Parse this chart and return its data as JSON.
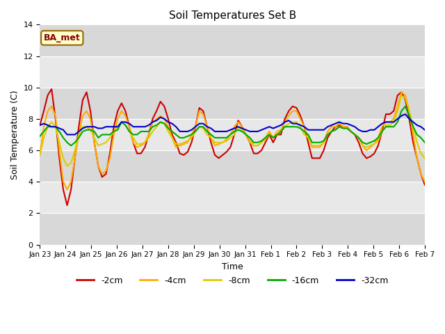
{
  "title": "Soil Temperatures Set B",
  "xlabel": "Time",
  "ylabel": "Soil Temperature (C)",
  "ylim": [
    0,
    14
  ],
  "annotation": "BA_met",
  "colors": {
    "-2cm": "#cc0000",
    "-4cm": "#ffaa00",
    "-8cm": "#ddcc00",
    "-16cm": "#00aa00",
    "-32cm": "#0000cc"
  },
  "fig_bg_color": "#ffffff",
  "plot_bg_color": "#e8e8e8",
  "xtick_labels": [
    "Jan 23",
    "Jan 24",
    "Jan 25",
    "Jan 26",
    "Jan 27",
    "Jan 28",
    "Jan 29",
    "Jan 30",
    "Jan 31",
    "Feb 1",
    "Feb 2",
    "Feb 3",
    "Feb 4",
    "Feb 5",
    "Feb 6",
    "Feb 7"
  ],
  "band_colors": [
    "#e0e0e0",
    "#d0d0d0"
  ],
  "line_width": 1.5,
  "legend_entries": [
    "-2cm",
    "-4cm",
    "-8cm",
    "-16cm",
    "-32cm"
  ],
  "series_x": [
    0,
    1,
    2,
    3,
    4,
    5,
    6,
    7,
    8,
    9,
    10,
    11,
    12,
    13,
    14,
    15,
    16,
    17,
    18,
    19,
    20,
    21,
    22,
    23,
    24,
    25,
    26,
    27,
    28,
    29,
    30,
    31,
    32,
    33,
    34,
    35,
    36,
    37,
    38,
    39,
    40,
    41,
    42,
    43,
    44,
    45,
    46,
    47,
    48,
    49,
    50,
    51,
    52,
    53,
    54,
    55,
    56,
    57,
    58,
    59,
    60,
    61,
    62,
    63,
    64,
    65,
    66,
    67,
    68,
    69,
    70,
    71,
    72,
    73,
    74,
    75,
    76,
    77,
    78,
    79,
    80,
    81,
    82,
    83,
    84,
    85,
    86,
    87,
    88,
    89,
    90,
    91,
    92,
    93,
    94,
    95,
    96,
    97,
    98,
    99
  ],
  "series": {
    "-2cm": [
      7.6,
      8.5,
      9.5,
      9.9,
      8.0,
      5.5,
      3.5,
      2.5,
      3.5,
      5.5,
      7.5,
      9.2,
      9.7,
      8.5,
      6.5,
      5.0,
      4.3,
      4.5,
      5.8,
      7.5,
      8.5,
      9.0,
      8.5,
      7.5,
      6.5,
      5.8,
      5.8,
      6.2,
      7.0,
      8.0,
      8.5,
      9.1,
      8.8,
      8.0,
      7.0,
      6.5,
      5.8,
      5.7,
      5.9,
      6.5,
      7.5,
      8.7,
      8.5,
      7.5,
      6.5,
      5.7,
      5.5,
      5.7,
      5.9,
      6.2,
      7.0,
      7.9,
      7.5,
      7.0,
      6.5,
      5.8,
      5.8,
      6.0,
      6.5,
      7.0,
      6.5,
      7.0,
      7.0,
      8.0,
      8.5,
      8.8,
      8.7,
      8.2,
      7.5,
      6.5,
      5.5,
      5.5,
      5.5,
      6.0,
      6.8,
      7.2,
      7.5,
      7.6,
      7.5,
      7.5,
      7.2,
      7.0,
      6.5,
      5.8,
      5.5,
      5.6,
      5.8,
      6.3,
      7.2,
      8.3,
      8.3,
      8.5,
      9.5,
      9.7,
      9.2,
      8.0,
      6.5,
      5.5,
      4.5,
      3.8
    ],
    "-4cm": [
      5.7,
      7.5,
      8.5,
      8.8,
      8.2,
      6.0,
      4.0,
      3.5,
      4.0,
      5.5,
      7.0,
      8.2,
      8.5,
      8.0,
      6.5,
      5.0,
      4.5,
      4.7,
      5.5,
      7.0,
      8.0,
      8.5,
      8.2,
      7.5,
      6.5,
      6.2,
      6.3,
      6.5,
      7.0,
      7.8,
      8.0,
      8.2,
      8.0,
      7.5,
      6.8,
      6.2,
      6.3,
      6.4,
      6.5,
      7.0,
      7.5,
      8.5,
      8.3,
      7.5,
      6.8,
      6.3,
      6.4,
      6.5,
      6.7,
      7.0,
      7.5,
      7.8,
      7.5,
      7.0,
      6.5,
      6.3,
      6.3,
      6.5,
      6.8,
      7.2,
      6.8,
      7.2,
      7.3,
      7.8,
      8.2,
      8.5,
      8.5,
      8.0,
      7.5,
      6.8,
      6.2,
      6.2,
      6.2,
      6.5,
      7.2,
      7.5,
      7.5,
      7.7,
      7.5,
      7.5,
      7.2,
      7.0,
      6.8,
      6.3,
      6.0,
      6.2,
      6.4,
      6.8,
      7.5,
      7.8,
      7.8,
      8.0,
      8.8,
      9.7,
      9.5,
      8.5,
      7.0,
      5.5,
      4.5,
      4.0
    ],
    "-8cm": [
      5.7,
      6.8,
      7.5,
      7.8,
      7.5,
      6.5,
      5.5,
      5.0,
      5.2,
      6.0,
      7.0,
      7.5,
      7.5,
      7.3,
      6.8,
      6.3,
      6.4,
      6.5,
      6.8,
      7.2,
      7.5,
      7.8,
      7.6,
      7.2,
      6.8,
      6.4,
      6.4,
      6.5,
      6.8,
      7.2,
      7.5,
      7.8,
      7.7,
      7.2,
      6.8,
      6.4,
      6.4,
      6.5,
      6.6,
      6.8,
      7.2,
      7.5,
      7.4,
      7.0,
      6.8,
      6.5,
      6.5,
      6.5,
      6.6,
      6.8,
      7.0,
      7.5,
      7.3,
      7.0,
      6.8,
      6.3,
      6.3,
      6.5,
      6.7,
      7.0,
      6.8,
      7.0,
      7.2,
      7.5,
      7.7,
      7.8,
      7.8,
      7.5,
      7.0,
      6.8,
      6.3,
      6.3,
      6.3,
      6.5,
      7.0,
      7.2,
      7.3,
      7.5,
      7.4,
      7.4,
      7.2,
      7.0,
      6.8,
      6.3,
      6.2,
      6.3,
      6.4,
      6.6,
      7.2,
      7.6,
      7.6,
      7.8,
      8.5,
      9.5,
      9.3,
      8.5,
      7.5,
      6.5,
      5.8,
      5.5
    ],
    "-16cm": [
      6.9,
      7.2,
      7.5,
      7.5,
      7.5,
      7.2,
      6.8,
      6.5,
      6.3,
      6.5,
      6.8,
      7.2,
      7.3,
      7.3,
      7.2,
      6.8,
      7.0,
      7.0,
      7.0,
      7.2,
      7.3,
      7.8,
      7.6,
      7.2,
      7.0,
      7.0,
      7.2,
      7.2,
      7.2,
      7.5,
      7.6,
      7.8,
      7.7,
      7.4,
      7.2,
      7.0,
      6.8,
      6.8,
      6.9,
      7.0,
      7.2,
      7.5,
      7.5,
      7.2,
      7.0,
      6.8,
      6.8,
      6.8,
      6.8,
      7.0,
      7.2,
      7.3,
      7.2,
      7.0,
      6.8,
      6.5,
      6.5,
      6.6,
      6.8,
      7.0,
      6.8,
      7.0,
      7.2,
      7.5,
      7.5,
      7.5,
      7.5,
      7.4,
      7.2,
      7.0,
      6.5,
      6.5,
      6.5,
      6.6,
      7.0,
      7.2,
      7.3,
      7.5,
      7.4,
      7.4,
      7.2,
      7.0,
      6.8,
      6.5,
      6.4,
      6.5,
      6.6,
      6.8,
      7.2,
      7.5,
      7.5,
      7.5,
      7.8,
      8.5,
      8.8,
      8.2,
      7.5,
      7.0,
      6.8,
      6.5
    ],
    "-32cm": [
      7.6,
      7.7,
      7.6,
      7.5,
      7.5,
      7.4,
      7.3,
      7.0,
      7.0,
      7.0,
      7.2,
      7.4,
      7.5,
      7.5,
      7.5,
      7.4,
      7.4,
      7.5,
      7.5,
      7.5,
      7.5,
      7.8,
      7.8,
      7.7,
      7.5,
      7.5,
      7.5,
      7.5,
      7.6,
      7.8,
      7.9,
      8.1,
      8.0,
      7.8,
      7.7,
      7.5,
      7.2,
      7.2,
      7.2,
      7.3,
      7.5,
      7.7,
      7.7,
      7.5,
      7.4,
      7.2,
      7.2,
      7.2,
      7.2,
      7.3,
      7.4,
      7.5,
      7.4,
      7.3,
      7.2,
      7.2,
      7.2,
      7.3,
      7.4,
      7.5,
      7.4,
      7.5,
      7.6,
      7.8,
      7.9,
      7.7,
      7.7,
      7.6,
      7.5,
      7.3,
      7.3,
      7.3,
      7.3,
      7.3,
      7.5,
      7.6,
      7.7,
      7.8,
      7.7,
      7.7,
      7.6,
      7.5,
      7.3,
      7.2,
      7.2,
      7.3,
      7.3,
      7.5,
      7.7,
      7.8,
      7.8,
      7.8,
      8.0,
      8.2,
      8.3,
      8.0,
      7.8,
      7.6,
      7.5,
      7.3
    ]
  }
}
